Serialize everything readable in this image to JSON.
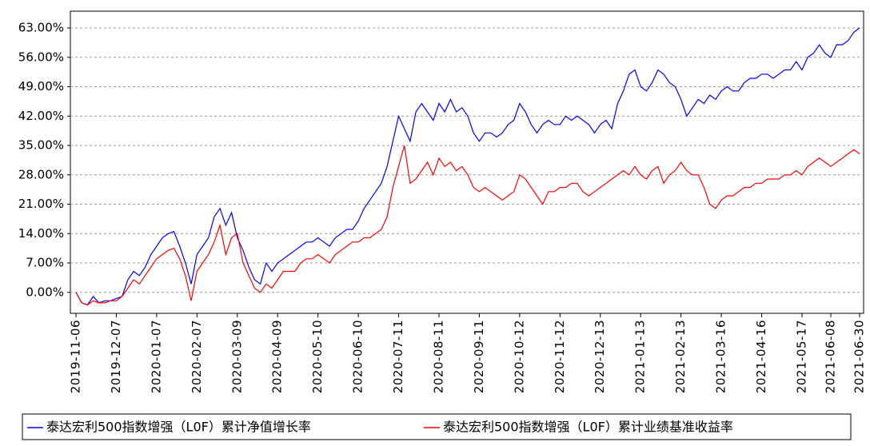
{
  "chart_data": {
    "type": "line",
    "categories": [
      "2019-11-06",
      null,
      null,
      null,
      null,
      null,
      null,
      "2019-12-07",
      null,
      null,
      null,
      null,
      null,
      null,
      "2020-01-07",
      null,
      null,
      null,
      null,
      null,
      null,
      "2020-02-07",
      null,
      null,
      null,
      null,
      null,
      null,
      "2020-03-09",
      null,
      null,
      null,
      null,
      null,
      null,
      "2020-04-09",
      null,
      null,
      null,
      null,
      null,
      null,
      "2020-05-10",
      null,
      null,
      null,
      null,
      null,
      null,
      "2020-06-10",
      null,
      null,
      null,
      null,
      null,
      null,
      "2020-07-11",
      null,
      null,
      null,
      null,
      null,
      null,
      "2020-08-11",
      null,
      null,
      null,
      null,
      null,
      null,
      "2020-09-11",
      null,
      null,
      null,
      null,
      null,
      null,
      "2020-10-12",
      null,
      null,
      null,
      null,
      null,
      null,
      "2020-11-12",
      null,
      null,
      null,
      null,
      null,
      null,
      "2020-12-13",
      null,
      null,
      null,
      null,
      null,
      null,
      "2021-01-13",
      null,
      null,
      null,
      null,
      null,
      null,
      "2021-02-13",
      null,
      null,
      null,
      null,
      null,
      null,
      "2021-03-16",
      null,
      null,
      null,
      null,
      null,
      null,
      "2021-04-16",
      null,
      null,
      null,
      null,
      null,
      null,
      "2021-05-17",
      null,
      null,
      null,
      null,
      "2021-06-08",
      null,
      null,
      null,
      null,
      "2021-06-30"
    ],
    "series": [
      {
        "name": "泰达宏利500指数增强（L0F）累计净值增长率",
        "color": "#0000ff",
        "values": [
          0,
          -2.5,
          -3,
          -1,
          -2.5,
          -2,
          -2,
          -1.5,
          -1,
          3,
          5,
          4,
          6,
          9,
          11,
          13,
          14,
          14.5,
          11,
          7,
          2,
          9,
          11,
          13,
          18,
          20,
          16,
          19,
          13,
          10,
          6,
          3,
          2,
          7,
          5,
          7,
          8,
          9,
          10,
          11,
          12,
          12,
          13,
          12,
          11,
          13,
          14,
          15,
          15,
          17,
          20,
          22,
          24,
          26,
          30,
          36,
          42,
          39,
          36,
          43,
          45,
          43,
          41,
          45,
          43,
          46,
          43,
          44,
          42,
          38,
          36,
          38,
          38,
          37,
          38,
          40,
          41,
          45,
          43,
          40,
          38,
          40,
          41,
          40,
          40,
          42,
          41,
          42,
          41,
          40,
          38,
          40,
          41,
          39,
          45,
          48,
          52,
          53,
          49,
          48,
          50,
          53,
          52,
          50,
          49,
          46,
          42,
          44,
          46,
          45,
          47,
          46,
          48,
          49,
          48,
          48,
          50,
          51,
          51,
          52,
          52,
          51,
          52,
          53,
          53,
          55,
          53,
          56,
          57,
          59,
          57,
          56,
          59,
          59,
          60,
          62,
          63
        ]
      },
      {
        "name": "泰达宏利500指数增强（L0F）累计业绩基准收益率",
        "color": "#ff0000",
        "values": [
          0,
          -2.5,
          -3,
          -2,
          -2.5,
          -2.5,
          -2,
          -2,
          -1,
          1,
          3,
          2,
          4,
          6,
          8,
          9,
          10,
          10.5,
          8,
          4,
          -2,
          5,
          7,
          9,
          12,
          16,
          9,
          13,
          14,
          7,
          4,
          1,
          0,
          2,
          1,
          3,
          5,
          5,
          5,
          7,
          8,
          8,
          9,
          8,
          7,
          9,
          10,
          11,
          12,
          12,
          13,
          13,
          14,
          15,
          18,
          25,
          30,
          35,
          26,
          27,
          29,
          31,
          28,
          32,
          30,
          31,
          29,
          30,
          28,
          25,
          24,
          25,
          24,
          23,
          22,
          23,
          24,
          28,
          27,
          25,
          23,
          21,
          24,
          24,
          25,
          25,
          26,
          26,
          24,
          23,
          24,
          25,
          26,
          27,
          28,
          29,
          28,
          30,
          28,
          27,
          29,
          30,
          26,
          28,
          29,
          31,
          29,
          28,
          28,
          25,
          21,
          20,
          22,
          23,
          23,
          24,
          25,
          25,
          26,
          26,
          27,
          27,
          27,
          28,
          28,
          29,
          28,
          30,
          31,
          32,
          31,
          30,
          31,
          32,
          33,
          34,
          33
        ]
      }
    ],
    "ylim": [
      -5,
      67
    ],
    "yticks": [
      {
        "value": 0,
        "label": "0.00%"
      },
      {
        "value": 7,
        "label": "7.00%"
      },
      {
        "value": 14,
        "label": "14.00%"
      },
      {
        "value": 21,
        "label": "21.00%"
      },
      {
        "value": 28,
        "label": "28.00%"
      },
      {
        "value": 35,
        "label": "35.00%"
      },
      {
        "value": 42,
        "label": "42.00%"
      },
      {
        "value": 49,
        "label": "49.00%"
      },
      {
        "value": 56,
        "label": "56.00%"
      },
      {
        "value": 63,
        "label": "63.00%"
      }
    ],
    "grid": true
  }
}
